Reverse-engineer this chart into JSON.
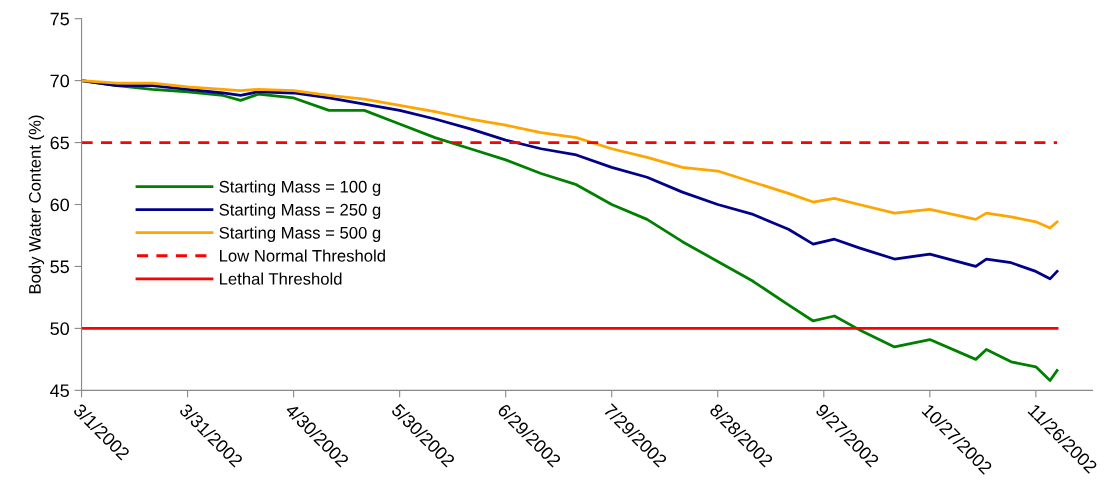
{
  "chart_data": {
    "type": "line",
    "ylabel": "Body Water Content (%)",
    "ylim": [
      45,
      75
    ],
    "yticks": [
      45,
      50,
      55,
      60,
      65,
      70,
      75
    ],
    "xlim": [
      "2002-03-01",
      "2002-12-12"
    ],
    "xticks": [
      {
        "value": "2002-03-01",
        "label": "3/1/2002"
      },
      {
        "value": "2002-03-31",
        "label": "3/31/2002"
      },
      {
        "value": "2002-04-30",
        "label": "4/30/2002"
      },
      {
        "value": "2002-05-30",
        "label": "5/30/2002"
      },
      {
        "value": "2002-06-29",
        "label": "6/29/2002"
      },
      {
        "value": "2002-07-29",
        "label": "7/29/2002"
      },
      {
        "value": "2002-08-28",
        "label": "8/28/2002"
      },
      {
        "value": "2002-09-27",
        "label": "9/27/2002"
      },
      {
        "value": "2002-10-27",
        "label": "10/27/2002"
      },
      {
        "value": "2002-11-26",
        "label": "11/26/2002"
      }
    ],
    "x": [
      "2002-03-01",
      "2002-03-11",
      "2002-03-21",
      "2002-03-31",
      "2002-04-10",
      "2002-04-15",
      "2002-04-20",
      "2002-04-30",
      "2002-05-10",
      "2002-05-20",
      "2002-05-30",
      "2002-06-09",
      "2002-06-19",
      "2002-06-29",
      "2002-07-09",
      "2002-07-19",
      "2002-07-29",
      "2002-08-08",
      "2002-08-18",
      "2002-08-28",
      "2002-09-07",
      "2002-09-17",
      "2002-09-24",
      "2002-09-30",
      "2002-10-07",
      "2002-10-17",
      "2002-10-27",
      "2002-11-09",
      "2002-11-12",
      "2002-11-19",
      "2002-11-26",
      "2002-11-30",
      "2002-12-02"
    ],
    "series": [
      {
        "name": "Starting Mass = 100 g",
        "color": "#008000",
        "values": [
          70.0,
          69.6,
          69.3,
          69.1,
          68.8,
          68.4,
          68.9,
          68.6,
          67.6,
          67.6,
          66.5,
          65.4,
          64.5,
          63.6,
          62.5,
          61.6,
          60.0,
          58.8,
          57.0,
          55.4,
          53.8,
          51.9,
          50.6,
          51.0,
          49.9,
          48.5,
          49.1,
          47.5,
          48.3,
          47.3,
          46.9,
          45.8,
          46.6
        ]
      },
      {
        "name": "Starting Mass = 250 g",
        "color": "#00008b",
        "values": [
          70.0,
          69.6,
          69.6,
          69.3,
          69.0,
          68.8,
          69.1,
          69.0,
          68.6,
          68.1,
          67.6,
          66.9,
          66.1,
          65.2,
          64.5,
          64.0,
          63.0,
          62.2,
          61.0,
          60.0,
          59.2,
          58.0,
          56.8,
          57.2,
          56.5,
          55.6,
          56.0,
          55.0,
          55.6,
          55.3,
          54.6,
          54.0,
          54.6
        ]
      },
      {
        "name": "Starting Mass = 500 g",
        "color": "#ffa500",
        "values": [
          70.0,
          69.8,
          69.8,
          69.5,
          69.3,
          69.2,
          69.3,
          69.2,
          68.8,
          68.5,
          68.0,
          67.5,
          66.9,
          66.4,
          65.8,
          65.4,
          64.5,
          63.8,
          63.0,
          62.7,
          61.8,
          60.9,
          60.2,
          60.5,
          60.0,
          59.3,
          59.6,
          58.8,
          59.3,
          59.0,
          58.6,
          58.1,
          58.6
        ]
      }
    ],
    "ref_lines": [
      {
        "axis": "y",
        "value": 65,
        "label": "Low Normal Threshold",
        "color": "#ff0000",
        "line_style": "dashed"
      },
      {
        "axis": "y",
        "value": 50,
        "label": "Lethal Threshold",
        "color": "#ff0000",
        "line_style": "solid"
      }
    ],
    "legend": "left",
    "grid": false,
    "marker": "none",
    "line_style": "solid"
  }
}
